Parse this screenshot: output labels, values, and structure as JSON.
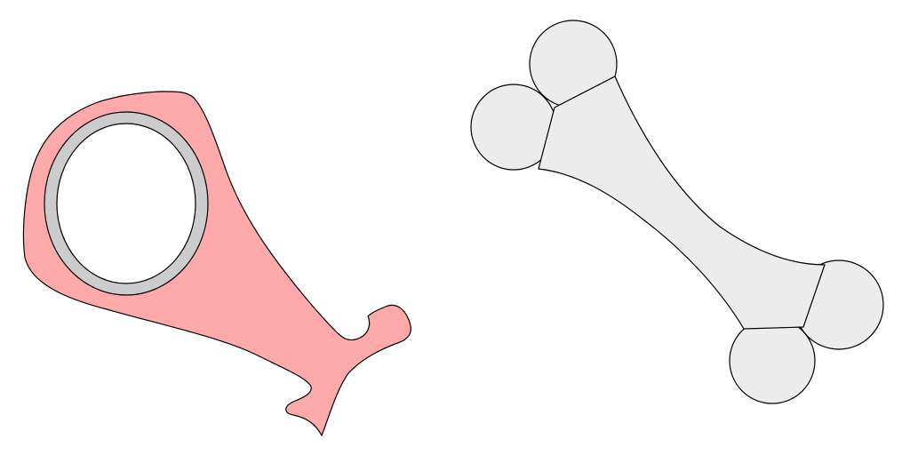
{
  "scene": {
    "background_color": "#ffffff",
    "objects": [
      {
        "name": "ham-leg-icon",
        "flesh_color": "#ffaaaa",
        "bone_ring_color": "#cccccc",
        "outline_color": "#000000"
      },
      {
        "name": "bone-icon",
        "fill_color": "#ececec",
        "outline_color": "#000000"
      }
    ]
  }
}
